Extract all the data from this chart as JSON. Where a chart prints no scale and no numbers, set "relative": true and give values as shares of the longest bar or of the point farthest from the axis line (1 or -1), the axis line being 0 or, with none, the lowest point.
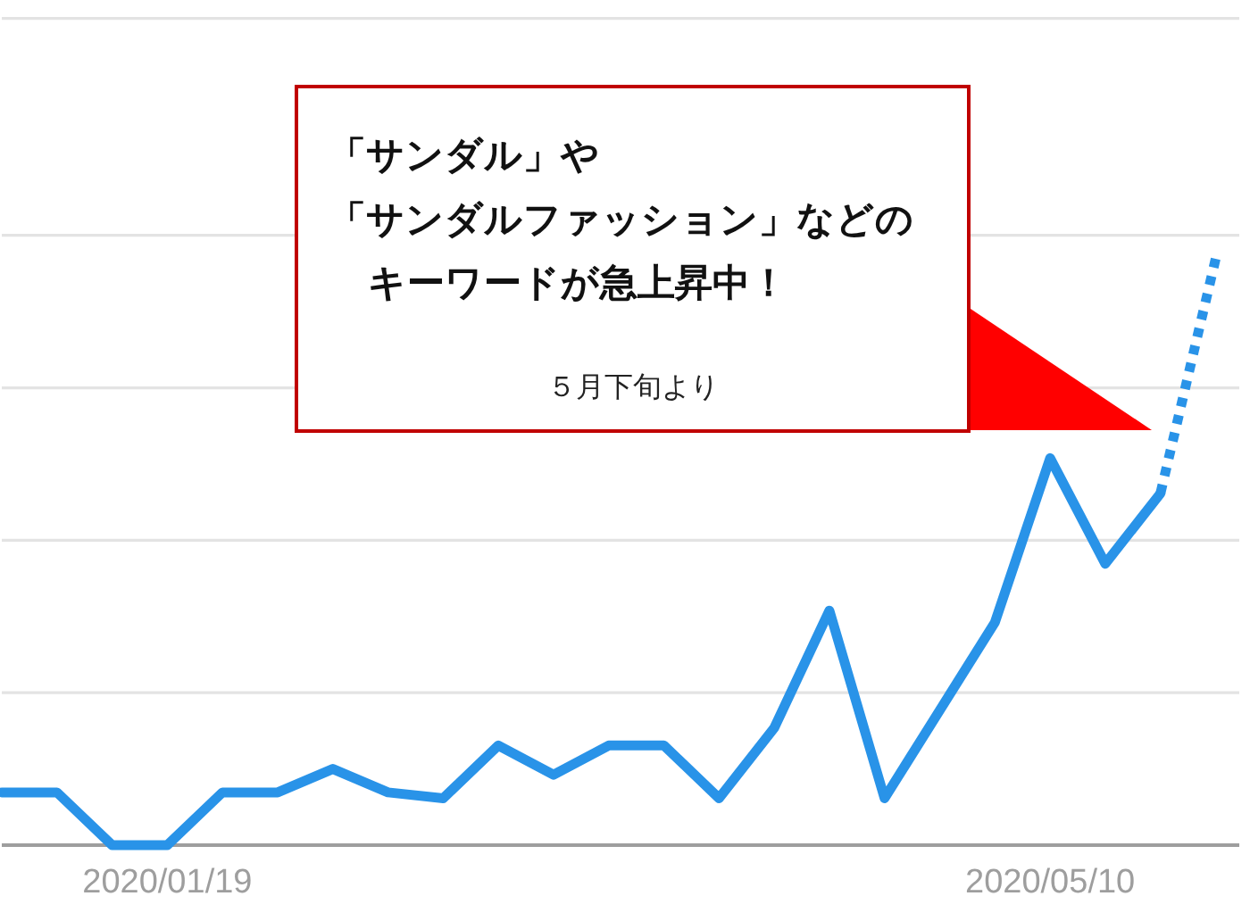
{
  "chart_data": {
    "type": "line",
    "x": [
      "2019-12-29",
      "2020-01-05",
      "2020-01-12",
      "2020-01-19",
      "2020-01-26",
      "2020-02-02",
      "2020-02-09",
      "2020-02-16",
      "2020-02-23",
      "2020-03-01",
      "2020-03-08",
      "2020-03-15",
      "2020-03-22",
      "2020-03-29",
      "2020-04-05",
      "2020-04-12",
      "2020-04-19",
      "2020-04-26",
      "2020-05-03",
      "2020-05-10",
      "2020-05-17",
      "2020-05-24"
    ],
    "series": [
      {
        "color": "#2993e8",
        "line_style": "solid",
        "values": [
          0.09,
          0.09,
          0.0,
          0.0,
          0.09,
          0.09,
          0.13,
          0.09,
          0.08,
          0.17,
          0.12,
          0.17,
          0.17,
          0.08,
          0.2,
          0.4,
          0.08,
          0.23,
          0.38,
          0.66,
          0.48,
          0.6
        ]
      },
      {
        "color": "#2993e8",
        "line_style": "dotted",
        "x": [
          "2020-05-24",
          "2020-05-31"
        ],
        "values": [
          0.6,
          1
        ]
      }
    ],
    "relative": true,
    "xlim": [
      "2019-12-29",
      "2020-06-03"
    ],
    "xticks": [
      {
        "value": "2020-01-19",
        "label": "2020/01/19"
      },
      {
        "value": "2020-05-10",
        "label": "2020/05/10"
      }
    ],
    "ref_lines": [
      {
        "axis": "y",
        "value": 0.26,
        "color": "#e3e3e3"
      },
      {
        "axis": "y",
        "value": 0.52,
        "color": "#e3e3e3"
      },
      {
        "axis": "y",
        "value": 0.78,
        "color": "#e3e3e3"
      },
      {
        "axis": "y",
        "value": 1.04,
        "color": "#e3e3e3"
      },
      {
        "axis": "y",
        "value": 1.41,
        "color": "#e3e3e3"
      }
    ],
    "tick_labels": "x",
    "annotations": [
      "「サンダル」や",
      "「サンダルファッション」などの",
      "キーワードが急上昇中！",
      "５月下旬より"
    ]
  }
}
